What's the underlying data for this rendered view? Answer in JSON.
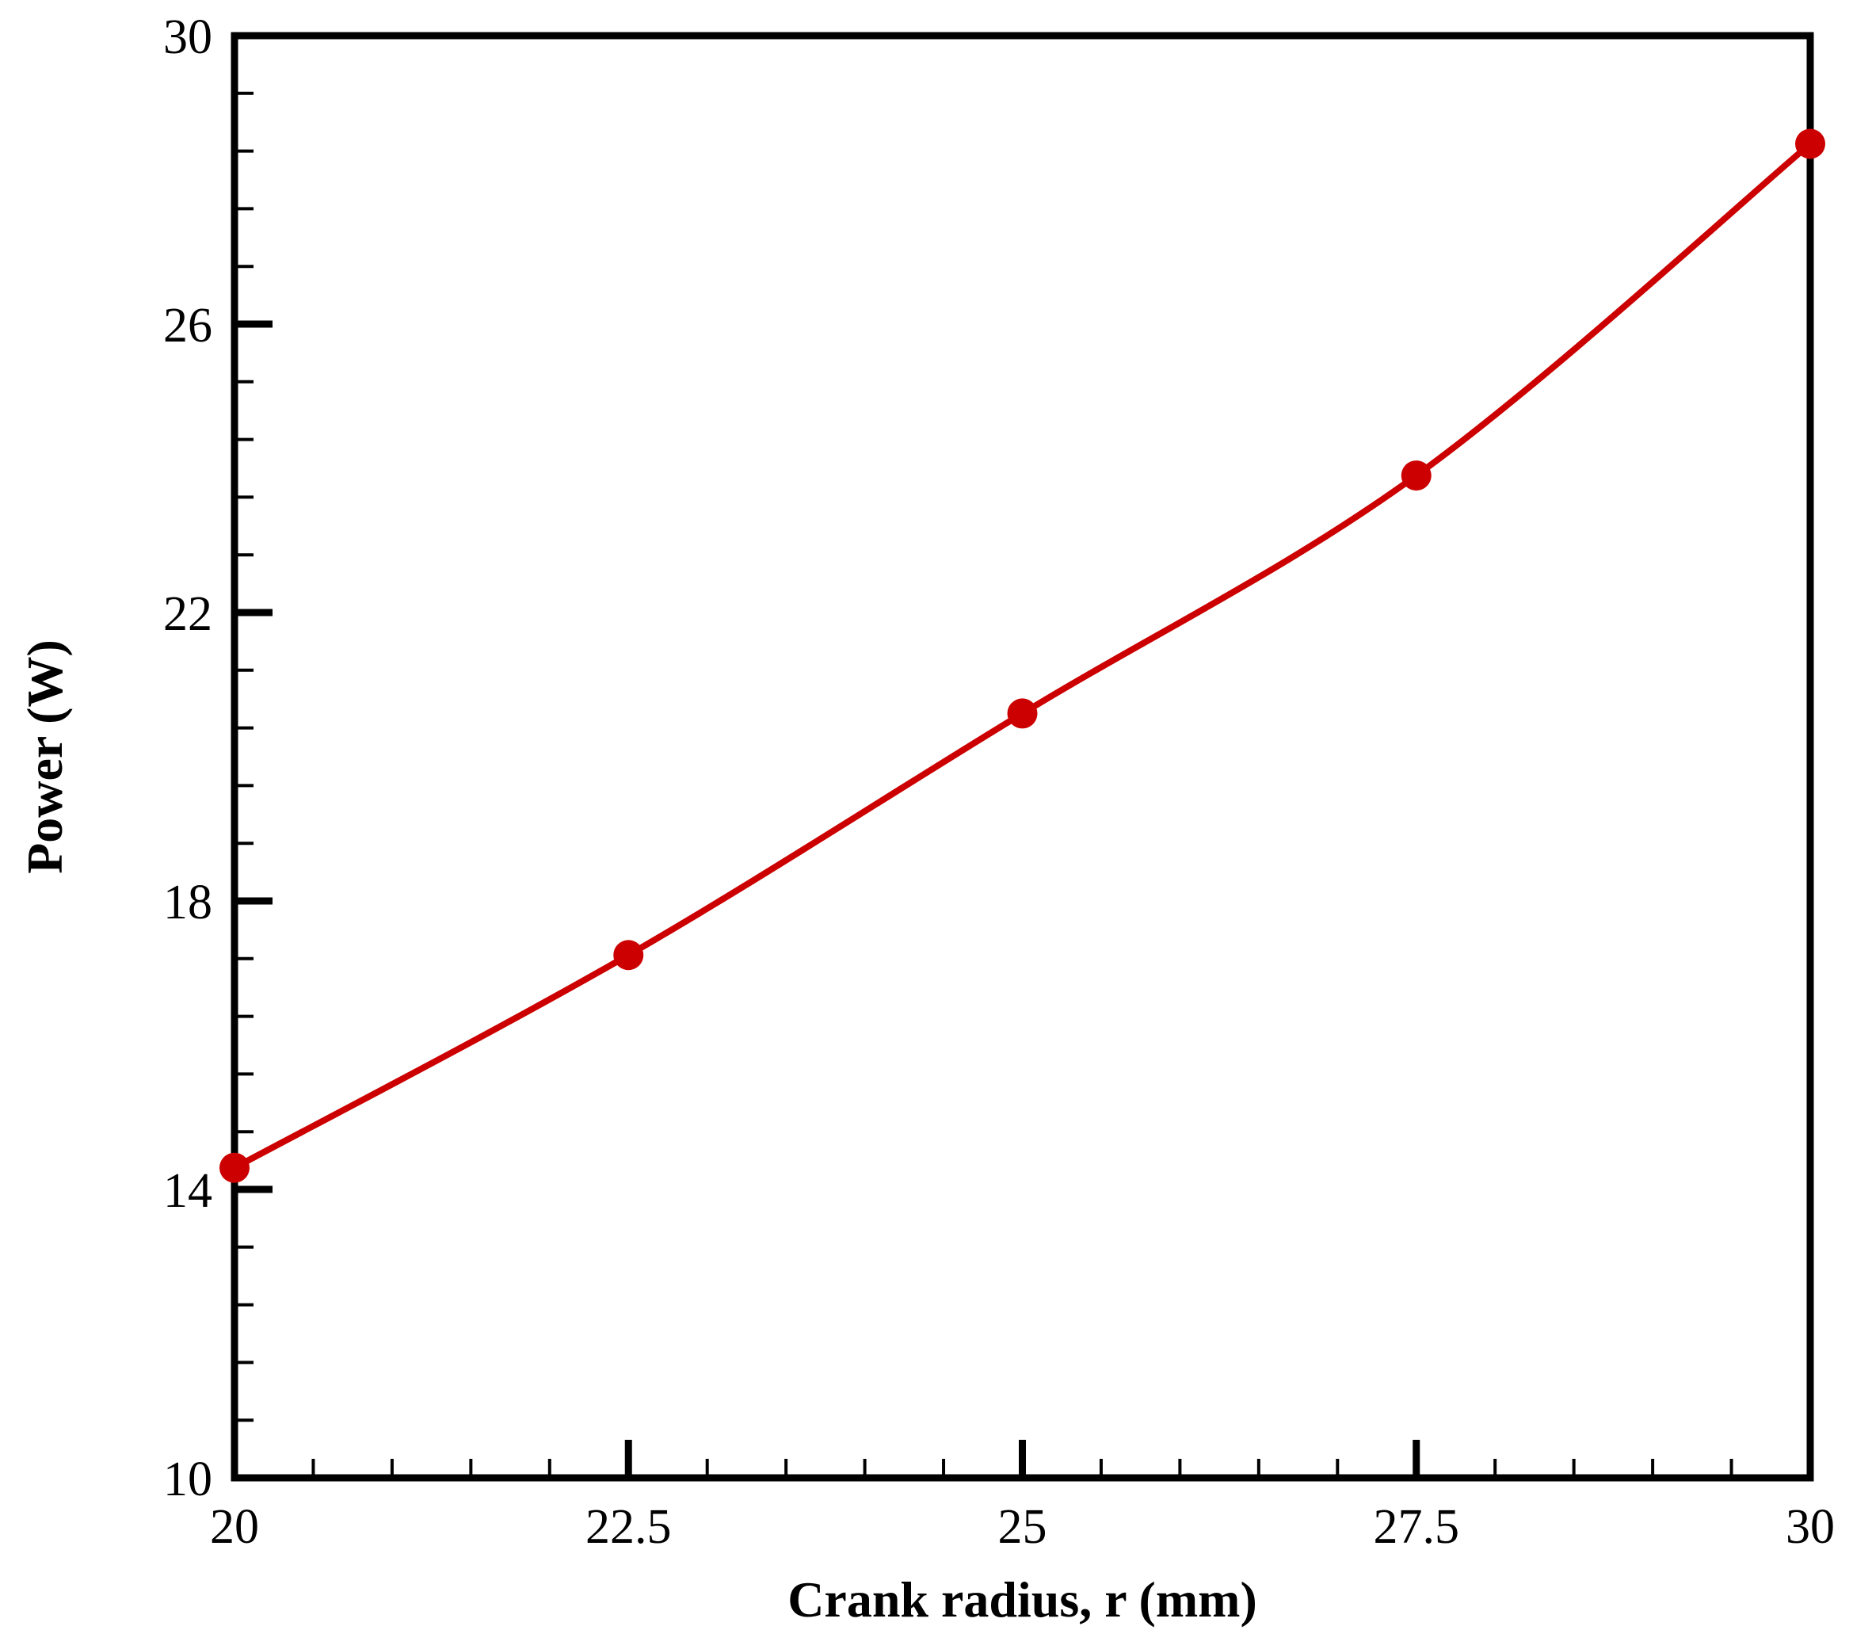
{
  "chart_data": {
    "type": "line",
    "title": "",
    "xlabel": "Crank radius, r (mm)",
    "ylabel": "Power (W)",
    "xlim": [
      20,
      30
    ],
    "ylim": [
      10,
      30
    ],
    "x_ticks": [
      20,
      22.5,
      25,
      27.5,
      30
    ],
    "x_tick_labels": [
      "20",
      "22.5",
      "25",
      "27.5",
      "30"
    ],
    "y_ticks": [
      10,
      14,
      18,
      22,
      26,
      30
    ],
    "y_tick_labels": [
      "10",
      "14",
      "18",
      "22",
      "26",
      "30"
    ],
    "x_minor_step": 0.5,
    "y_minor_step": 0.8,
    "grid": false,
    "legend": "none",
    "series": [
      {
        "x": [
          20,
          22.5,
          25,
          27.5,
          30
        ],
        "values": [
          14.3,
          17.25,
          20.6,
          23.9,
          28.5
        ],
        "color": "#cc0000",
        "marker": "circle",
        "smooth": true
      }
    ]
  }
}
